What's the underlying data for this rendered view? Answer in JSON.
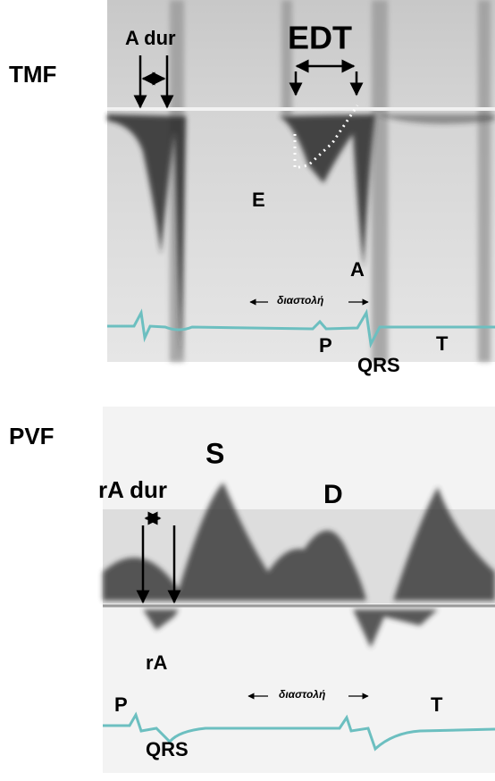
{
  "tmf": {
    "label": "TMF",
    "a_dur": "A dur",
    "edt": "EDT",
    "e_wave": "E",
    "a_wave": "A",
    "diastole": "διαστολή",
    "p": "P",
    "qrs": "QRS",
    "t": "T"
  },
  "pvf": {
    "label": "PVF",
    "s_wave": "S",
    "ra_dur": "rA dur",
    "d_wave": "D",
    "ra_wave": "rA",
    "diastole": "διαστολή",
    "p": "P",
    "qrs": "QRS",
    "t": "T"
  }
}
